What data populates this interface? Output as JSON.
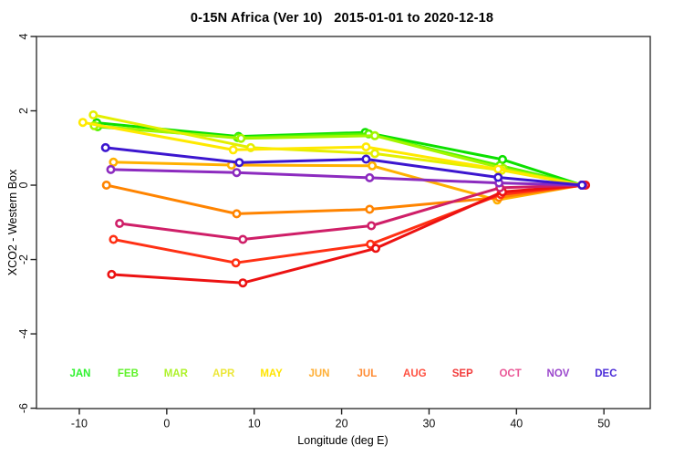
{
  "window": {
    "title": "0-15N Africa (Ver 10)   2015-01-01 to 2020-12-18"
  },
  "chart_data": {
    "type": "line",
    "title": "0-15N Africa (Ver 10)   2015-01-01 to 2020-12-18",
    "xlabel": "Longitude (deg E)",
    "ylabel": "XCO2 - Western Box",
    "x_ticks": [
      -10,
      0,
      10,
      20,
      30,
      40,
      50
    ],
    "y_ticks": [
      4,
      2,
      0,
      -2,
      -4,
      -6
    ],
    "x_range": [
      -14.9,
      55.3
    ],
    "y_range": [
      -6.01,
      4.0
    ],
    "grid": false,
    "legend_position": "bottom-inside-colored-month-labels",
    "marker": "open-circle",
    "series": [
      {
        "name": "JAN",
        "color": "#0ce000",
        "label_color": "#2ef22e",
        "points": [
          [
            -8.0,
            1.68
          ],
          [
            8.2,
            1.31
          ],
          [
            22.7,
            1.42
          ],
          [
            38.4,
            0.69
          ],
          [
            47.5,
            0.0
          ]
        ]
      },
      {
        "name": "FEB",
        "color": "#52f200",
        "label_color": "#5ff22a",
        "points": [
          [
            -7.9,
            1.57
          ],
          [
            8.1,
            1.28
          ],
          [
            23.1,
            1.38
          ],
          [
            38.1,
            0.53
          ],
          [
            47.5,
            0.0
          ]
        ]
      },
      {
        "name": "MAR",
        "color": "#a4f500",
        "label_color": "#aef22a",
        "points": [
          [
            -8.3,
            1.6
          ],
          [
            8.5,
            1.26
          ],
          [
            23.8,
            1.33
          ],
          [
            38.5,
            0.45
          ],
          [
            47.5,
            0.0
          ]
        ]
      },
      {
        "name": "APR",
        "color": "#e4ef00",
        "label_color": "#ece73a",
        "points": [
          [
            -8.4,
            1.89
          ],
          [
            9.6,
            1.01
          ],
          [
            23.8,
            0.85
          ],
          [
            38.3,
            0.4
          ],
          [
            47.5,
            0.0
          ]
        ]
      },
      {
        "name": "MAY",
        "color": "#ffe900",
        "label_color": "#ffe400",
        "points": [
          [
            -9.6,
            1.69
          ],
          [
            7.6,
            0.95
          ],
          [
            22.8,
            1.03
          ],
          [
            37.9,
            0.43
          ],
          [
            47.5,
            0.0
          ]
        ]
      },
      {
        "name": "JUN",
        "color": "#ffb000",
        "label_color": "#ffae33",
        "points": [
          [
            -6.1,
            0.62
          ],
          [
            7.4,
            0.54
          ],
          [
            23.5,
            0.52
          ],
          [
            37.8,
            -0.4
          ],
          [
            47.5,
            0.0
          ]
        ]
      },
      {
        "name": "JUL",
        "color": "#ff8400",
        "label_color": "#ff8b33",
        "points": [
          [
            -6.9,
            0.0
          ],
          [
            8.0,
            -0.77
          ],
          [
            23.2,
            -0.65
          ],
          [
            38.0,
            -0.33
          ],
          [
            47.5,
            0.0
          ]
        ]
      },
      {
        "name": "AUG",
        "color": "#ff3014",
        "label_color": "#ff5040",
        "points": [
          [
            -6.1,
            -1.46
          ],
          [
            7.9,
            -2.09
          ],
          [
            23.3,
            -1.59
          ],
          [
            38.2,
            -0.25
          ],
          [
            47.8,
            0.0
          ]
        ]
      },
      {
        "name": "SEP",
        "color": "#ec1212",
        "label_color": "#f23c3c",
        "points": [
          [
            -6.3,
            -2.4
          ],
          [
            8.7,
            -2.63
          ],
          [
            23.9,
            -1.7
          ],
          [
            38.4,
            -0.18
          ],
          [
            47.9,
            0.0
          ]
        ]
      },
      {
        "name": "OCT",
        "color": "#cf1f68",
        "label_color": "#ea5796",
        "points": [
          [
            -5.4,
            -1.03
          ],
          [
            8.7,
            -1.46
          ],
          [
            23.4,
            -1.09
          ],
          [
            38.1,
            -0.07
          ],
          [
            47.6,
            0.0
          ]
        ]
      },
      {
        "name": "NOV",
        "color": "#8c2bbf",
        "label_color": "#9a46cc",
        "points": [
          [
            -6.4,
            0.42
          ],
          [
            8.0,
            0.34
          ],
          [
            23.2,
            0.2
          ],
          [
            38.0,
            0.06
          ],
          [
            47.5,
            0.0
          ]
        ]
      },
      {
        "name": "DEC",
        "color": "#3c16cf",
        "label_color": "#4b2cd8",
        "points": [
          [
            -7.0,
            1.01
          ],
          [
            8.3,
            0.61
          ],
          [
            22.8,
            0.7
          ],
          [
            37.9,
            0.21
          ],
          [
            47.5,
            0.0
          ]
        ]
      }
    ]
  }
}
